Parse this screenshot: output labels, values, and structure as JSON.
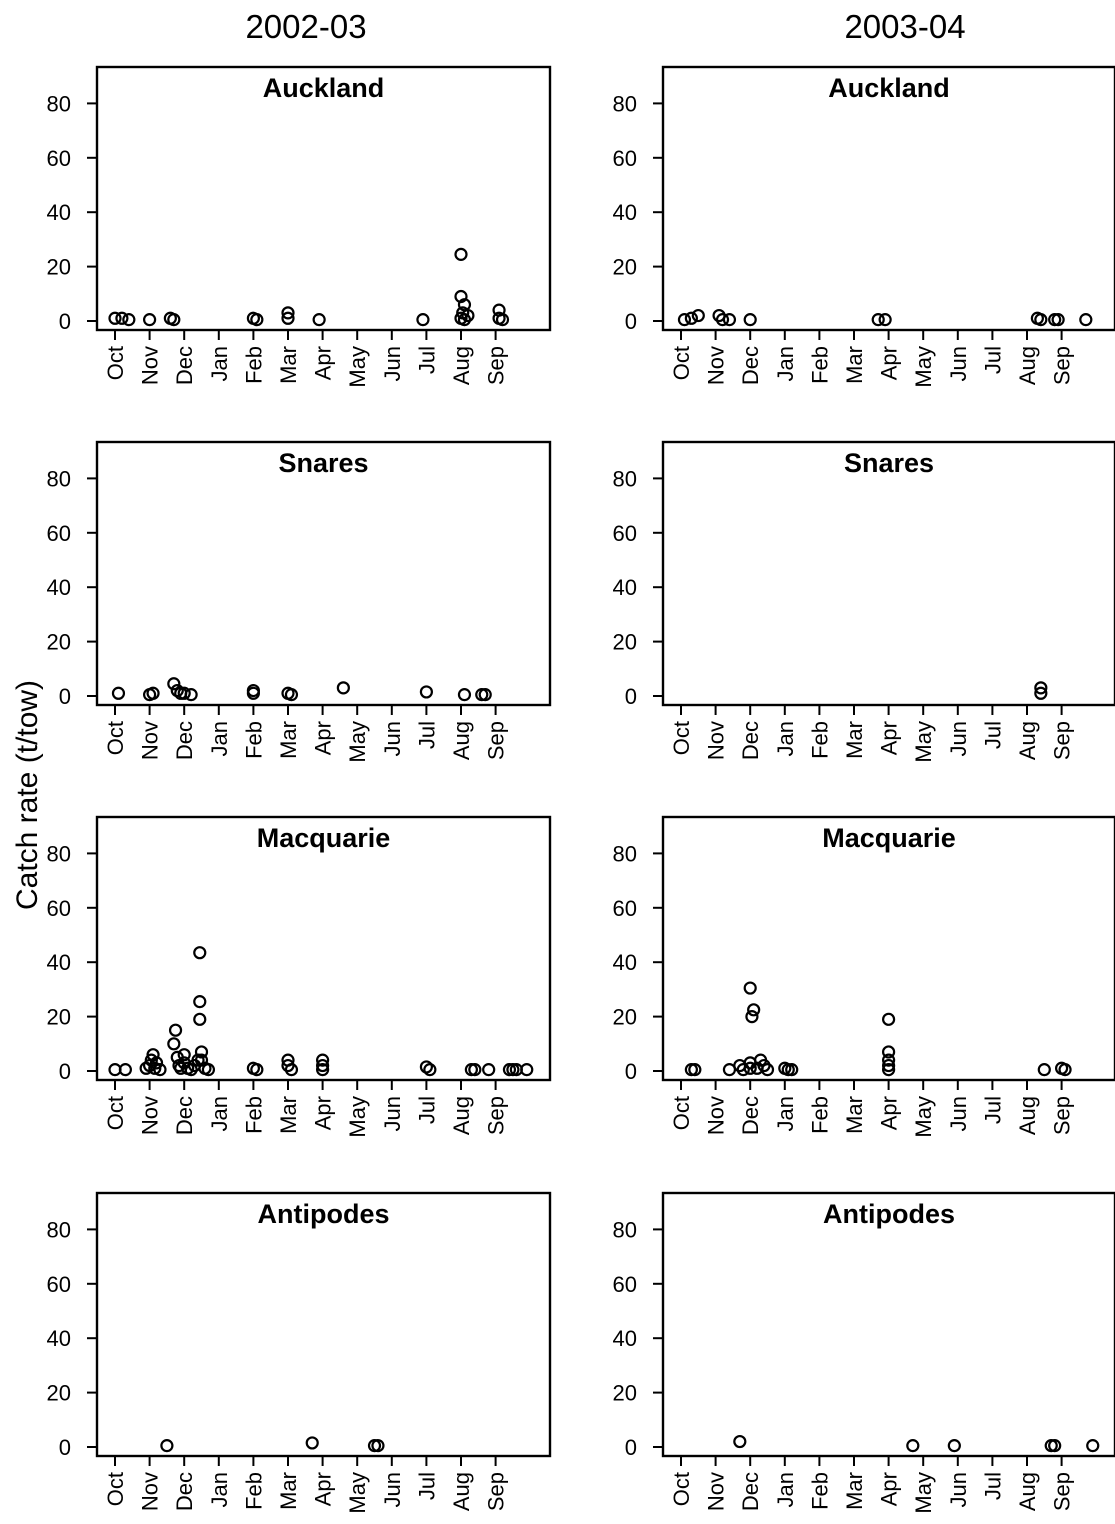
{
  "figure": {
    "ylabel": "Catch rate (t/tow)",
    "columns": [
      "2002-03",
      "2003-04"
    ],
    "months": [
      "Oct",
      "Nov",
      "Dec",
      "Jan",
      "Feb",
      "Mar",
      "Apr",
      "May",
      "Jun",
      "Jul",
      "Aug",
      "Sep"
    ],
    "yticks": [
      0,
      20,
      40,
      60,
      80
    ]
  },
  "chart_data": [
    {
      "type": "scatter",
      "column": "2002-03",
      "title": "Auckland",
      "xlabel": "",
      "ylabel": "Catch rate (t/tow)",
      "ylim": [
        -5,
        95
      ],
      "x_unit": "month index (0=Oct ... 11=Sep)",
      "points": [
        [
          0,
          1
        ],
        [
          0.2,
          1
        ],
        [
          0.4,
          0.5
        ],
        [
          1,
          0.5
        ],
        [
          1.6,
          1
        ],
        [
          1.7,
          0.5
        ],
        [
          4,
          1
        ],
        [
          4.1,
          0.5
        ],
        [
          5,
          1
        ],
        [
          5,
          3
        ],
        [
          5.9,
          0.5
        ],
        [
          8.9,
          0.5
        ],
        [
          10,
          24.5
        ],
        [
          10,
          9
        ],
        [
          10.1,
          6
        ],
        [
          10.05,
          3
        ],
        [
          10,
          1
        ],
        [
          10.1,
          0.5
        ],
        [
          10.2,
          2
        ],
        [
          11.1,
          4
        ],
        [
          11.1,
          1
        ],
        [
          11.2,
          0.5
        ]
      ]
    },
    {
      "type": "scatter",
      "column": "2003-04",
      "title": "Auckland",
      "xlabel": "",
      "ylabel": "",
      "ylim": [
        -5,
        95
      ],
      "x_unit": "month index (0=Oct ... 11=Sep)",
      "points": [
        [
          0.1,
          0.5
        ],
        [
          0.3,
          1
        ],
        [
          0.5,
          2
        ],
        [
          1.1,
          2
        ],
        [
          1.2,
          0.5
        ],
        [
          1.4,
          0.5
        ],
        [
          2,
          0.5
        ],
        [
          5.7,
          0.5
        ],
        [
          5.9,
          0.5
        ],
        [
          10.3,
          1
        ],
        [
          10.4,
          0.5
        ],
        [
          10.8,
          0.5
        ],
        [
          10.9,
          0.5
        ],
        [
          11.7,
          0.5
        ]
      ]
    },
    {
      "type": "scatter",
      "column": "2002-03",
      "title": "Snares",
      "xlabel": "",
      "ylabel": "",
      "ylim": [
        -5,
        95
      ],
      "x_unit": "month index (0=Oct ... 11=Sep)",
      "points": [
        [
          0.1,
          1
        ],
        [
          1,
          0.5
        ],
        [
          1.1,
          1
        ],
        [
          1.7,
          4.5
        ],
        [
          1.8,
          2
        ],
        [
          1.9,
          1
        ],
        [
          2,
          1
        ],
        [
          2.2,
          0.5
        ],
        [
          4,
          2
        ],
        [
          4,
          1
        ],
        [
          5,
          1
        ],
        [
          5.1,
          0.5
        ],
        [
          6.6,
          3
        ],
        [
          9,
          1.5
        ],
        [
          10.1,
          0.5
        ],
        [
          10.6,
          0.5
        ],
        [
          10.7,
          0.5
        ]
      ]
    },
    {
      "type": "scatter",
      "column": "2003-04",
      "title": "Snares",
      "xlabel": "",
      "ylabel": "",
      "ylim": [
        -5,
        95
      ],
      "x_unit": "month index (0=Oct ... 11=Sep)",
      "points": [
        [
          10.4,
          3
        ],
        [
          10.4,
          1
        ]
      ]
    },
    {
      "type": "scatter",
      "column": "2002-03",
      "title": "Macquarie",
      "xlabel": "",
      "ylabel": "",
      "ylim": [
        -5,
        95
      ],
      "x_unit": "month index (0=Oct ... 11=Sep)",
      "points": [
        [
          0,
          0.5
        ],
        [
          0.3,
          0.5
        ],
        [
          0.9,
          1
        ],
        [
          1,
          2
        ],
        [
          1.05,
          4
        ],
        [
          1.1,
          6
        ],
        [
          1.15,
          1
        ],
        [
          1.2,
          3
        ],
        [
          1.3,
          0.5
        ],
        [
          1.7,
          10
        ],
        [
          1.75,
          15
        ],
        [
          1.8,
          5
        ],
        [
          1.85,
          2
        ],
        [
          1.9,
          1
        ],
        [
          2,
          6
        ],
        [
          2,
          3
        ],
        [
          2.1,
          1
        ],
        [
          2.2,
          0.5
        ],
        [
          2.3,
          2
        ],
        [
          2.4,
          4
        ],
        [
          2.45,
          43.5
        ],
        [
          2.45,
          25.5
        ],
        [
          2.45,
          19
        ],
        [
          2.5,
          7
        ],
        [
          2.5,
          4
        ],
        [
          2.6,
          1
        ],
        [
          2.7,
          0.5
        ],
        [
          4,
          1
        ],
        [
          4.1,
          0.5
        ],
        [
          5,
          4
        ],
        [
          5,
          2
        ],
        [
          5.1,
          0.5
        ],
        [
          6,
          4
        ],
        [
          6,
          2
        ],
        [
          6,
          0.5
        ],
        [
          9,
          1.5
        ],
        [
          9.1,
          0.5
        ],
        [
          10.3,
          0.5
        ],
        [
          10.4,
          0.5
        ],
        [
          10.8,
          0.5
        ],
        [
          11.4,
          0.5
        ],
        [
          11.5,
          0.5
        ],
        [
          11.6,
          0.5
        ],
        [
          11.9,
          0.5
        ]
      ]
    },
    {
      "type": "scatter",
      "column": "2003-04",
      "title": "Macquarie",
      "xlabel": "",
      "ylabel": "",
      "ylim": [
        -5,
        95
      ],
      "x_unit": "month index (0=Oct ... 11=Sep)",
      "points": [
        [
          0.3,
          0.5
        ],
        [
          0.4,
          0.5
        ],
        [
          1.4,
          0.5
        ],
        [
          1.7,
          2
        ],
        [
          1.8,
          0.5
        ],
        [
          2,
          1
        ],
        [
          2,
          3
        ],
        [
          2,
          30.5
        ],
        [
          2.05,
          20
        ],
        [
          2.1,
          22.5
        ],
        [
          2.2,
          1
        ],
        [
          2.3,
          4
        ],
        [
          2.4,
          2
        ],
        [
          2.5,
          0.5
        ],
        [
          3,
          1
        ],
        [
          3.1,
          0.5
        ],
        [
          3.2,
          0.5
        ],
        [
          6,
          19
        ],
        [
          6,
          7
        ],
        [
          6,
          4
        ],
        [
          6,
          2
        ],
        [
          6,
          0.5
        ],
        [
          10.5,
          0.5
        ],
        [
          11,
          1
        ],
        [
          11.1,
          0.5
        ]
      ]
    },
    {
      "type": "scatter",
      "column": "2002-03",
      "title": "Antipodes",
      "xlabel": "",
      "ylabel": "",
      "ylim": [
        -5,
        95
      ],
      "x_unit": "month index (0=Oct ... 11=Sep)",
      "points": [
        [
          1.5,
          0.5
        ],
        [
          5.7,
          1.5
        ],
        [
          7.5,
          0.5
        ],
        [
          7.6,
          0.5
        ]
      ]
    },
    {
      "type": "scatter",
      "column": "2003-04",
      "title": "Antipodes",
      "xlabel": "",
      "ylabel": "",
      "ylim": [
        -5,
        95
      ],
      "x_unit": "month index (0=Oct ... 11=Sep)",
      "points": [
        [
          1.7,
          2
        ],
        [
          6.7,
          0.5
        ],
        [
          7.9,
          0.5
        ],
        [
          10.7,
          0.5
        ],
        [
          10.8,
          0.5
        ],
        [
          11.9,
          0.5
        ]
      ]
    }
  ]
}
